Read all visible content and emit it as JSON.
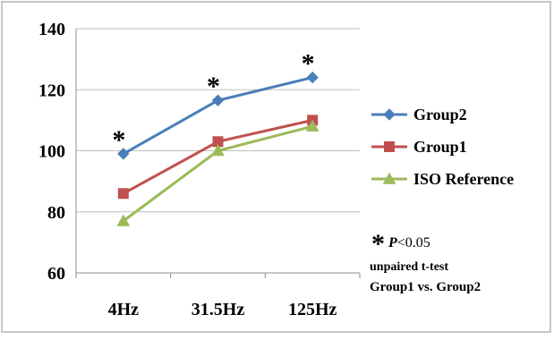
{
  "chart_data": {
    "type": "line",
    "categories": [
      "4Hz",
      "31.5Hz",
      "125Hz"
    ],
    "ylim": [
      60,
      140
    ],
    "yticks": [
      60,
      80,
      100,
      120,
      140
    ],
    "grid": true,
    "legend_position": "right",
    "series": [
      {
        "name": "Group2",
        "values": [
          99,
          116.5,
          124
        ],
        "color": "#4a7ebb",
        "marker": "diamond"
      },
      {
        "name": "Group1",
        "values": [
          86,
          103,
          110
        ],
        "color": "#c0504d",
        "marker": "square"
      },
      {
        "name": "ISO Reference",
        "values": [
          77,
          100,
          108
        ],
        "color": "#9bbb59",
        "marker": "triangle"
      }
    ],
    "significance_marker": "*",
    "significant_categories": [
      "4Hz",
      "31.5Hz",
      "125Hz"
    ],
    "note": {
      "symbol": "*",
      "p_label": "P",
      "p_value": "<0.05",
      "line1": "unpaired t-test",
      "line2": "Group1 vs. Group2"
    }
  }
}
